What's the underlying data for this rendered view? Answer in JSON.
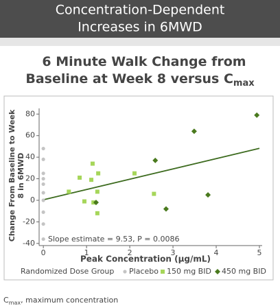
{
  "header": {
    "lines": [
      "Concentration-Dependent",
      "Increases in 6MWD"
    ]
  },
  "chart_data": {
    "type": "scatter",
    "title": "6 Minute Walk Change from Baseline at Week 8 versus C",
    "title_subscript": "max",
    "xlabel": "Peak Concentration (µg/mL)",
    "ylabel": [
      "Change From Baseline to Week",
      "8 in 6MWD"
    ],
    "xlim": [
      -0.05,
      5
    ],
    "xticks": [
      0,
      1,
      2,
      3,
      4,
      5
    ],
    "ylim": [
      -42,
      84
    ],
    "yticks": [
      -40,
      -20,
      0,
      20,
      40,
      60,
      80
    ],
    "legend_title": "Randomized Dose Group",
    "series": [
      {
        "name": "Placebo",
        "color": "#c4c4c4",
        "marker": "circle",
        "x": [
          0,
          0,
          0,
          0,
          0,
          0,
          0,
          0,
          0,
          0
        ],
        "values": [
          48,
          38,
          25,
          20,
          15,
          7,
          0,
          -11,
          -22,
          -36
        ]
      },
      {
        "name": "150 mg BID",
        "color": "#a6d65a",
        "marker": "square",
        "x": [
          1.14,
          0.84,
          1.11,
          1.27,
          0.59,
          0.95,
          1.16,
          1.25,
          1.25,
          2.11,
          2.56
        ],
        "values": [
          34,
          21,
          19,
          25,
          8,
          -1,
          -2,
          8,
          -12,
          25,
          6
        ]
      },
      {
        "name": "450 mg BID",
        "color": "#4a7a1e",
        "marker": "diamond",
        "x": [
          4.94,
          3.49,
          2.59,
          1.22,
          2.84,
          3.81
        ],
        "values": [
          79,
          64,
          37,
          -2,
          -8,
          5
        ]
      }
    ],
    "fit_line": {
      "color": "#3d6b1f",
      "x": [
        0,
        5
      ],
      "values": [
        0.5,
        48.2
      ]
    },
    "annotation": "Slope estimate = 9.53, P = 0.0086"
  },
  "footnote": {
    "symbol": "C",
    "subscript": "max",
    "text": ", maximum concentration"
  }
}
